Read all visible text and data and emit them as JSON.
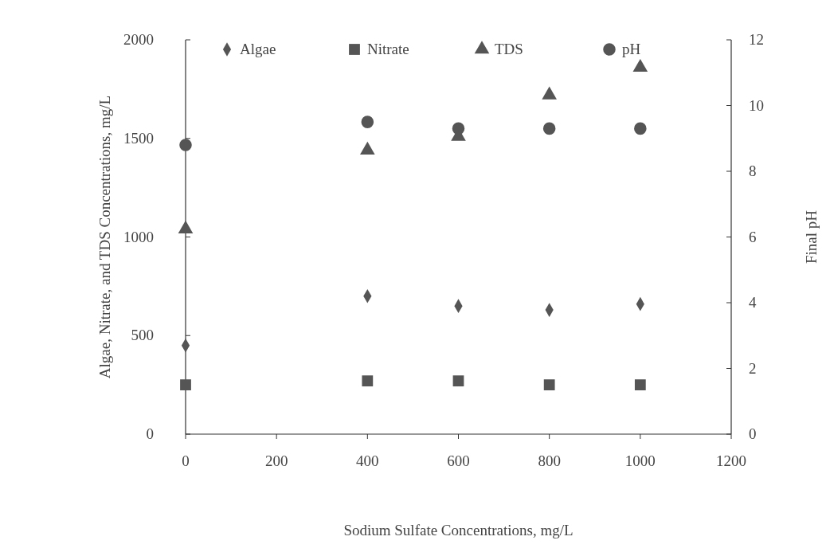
{
  "chart_data": {
    "type": "scatter",
    "xlabel": "Sodium Sulfate Concentrations, mg/L",
    "ylabel": "Algae, Nitrate, and TDS Concentrations, mg/L",
    "y2label": "Final pH",
    "x": [
      0,
      400,
      600,
      800,
      1000
    ],
    "series": [
      {
        "name": "Algae",
        "color": "#555555",
        "marker": "diamond",
        "values": [
          450,
          700,
          650,
          630,
          660
        ]
      },
      {
        "name": "Nitrate",
        "color": "#555555",
        "marker": "square",
        "values": [
          250,
          270,
          270,
          250,
          250
        ]
      },
      {
        "name": "TDS",
        "color": "#555555",
        "marker": "triangle",
        "values": [
          1040,
          1440,
          1510,
          1720,
          1860
        ]
      },
      {
        "name": "pH",
        "color": "#555555",
        "marker": "circle",
        "axis": "y2",
        "values": [
          8.8,
          9.5,
          9.3,
          9.3,
          9.3
        ]
      }
    ],
    "xlim": [
      0,
      1200
    ],
    "xticks": [
      0,
      200,
      400,
      600,
      800,
      1000,
      1200
    ],
    "ylim": [
      0,
      2000
    ],
    "yticks": [
      0,
      500,
      1000,
      1500,
      2000
    ],
    "y2lim": [
      0,
      12
    ],
    "y2ticks": [
      0,
      2,
      4,
      6,
      8,
      10,
      12
    ],
    "grid": false,
    "legend": "top"
  }
}
